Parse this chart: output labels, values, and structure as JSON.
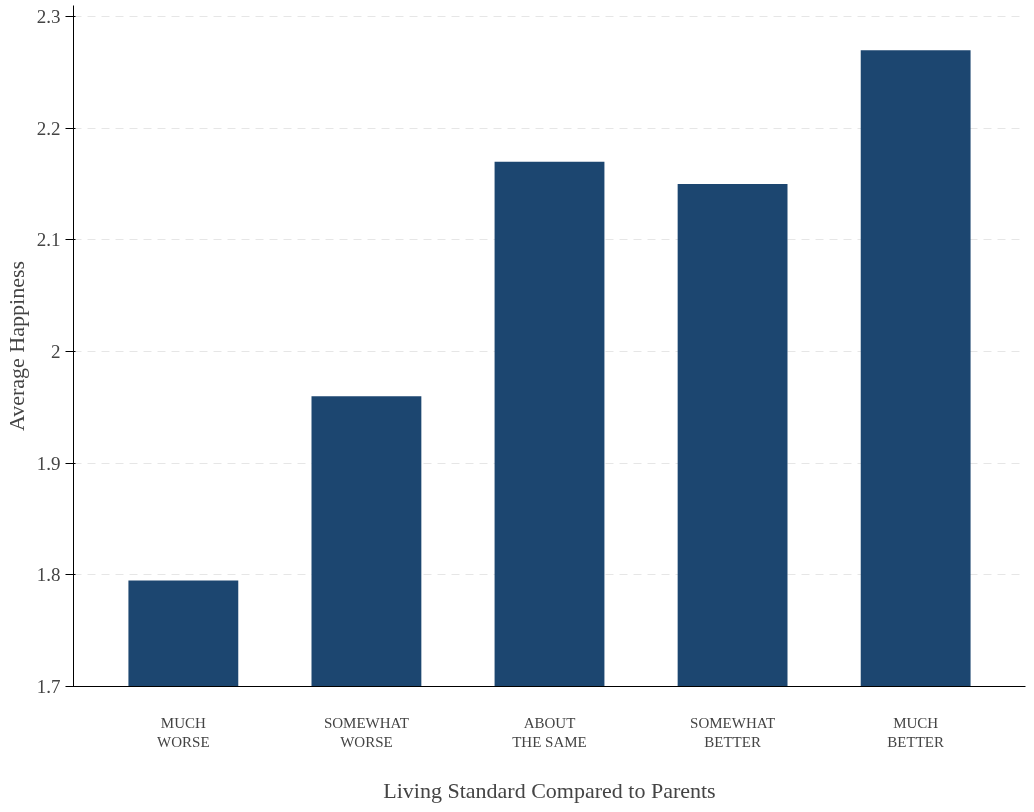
{
  "chart_data": {
    "type": "bar",
    "xlabel": "Living Standard Compared to Parents",
    "ylabel": "Average Happiness",
    "categories": [
      "MUCH\nWORSE",
      "SOMEWHAT\nWORSE",
      "ABOUT\nTHE SAME",
      "SOMEWHAT\nBETTER",
      "MUCH\nBETTER"
    ],
    "values": [
      1.795,
      1.96,
      2.17,
      2.15,
      2.27
    ],
    "color": "#1c4670",
    "ylim": [
      1.7,
      2.31
    ],
    "yticks": [
      1.7,
      1.8,
      1.9,
      2,
      2.1,
      2.2,
      2.3
    ],
    "grid": "y"
  }
}
